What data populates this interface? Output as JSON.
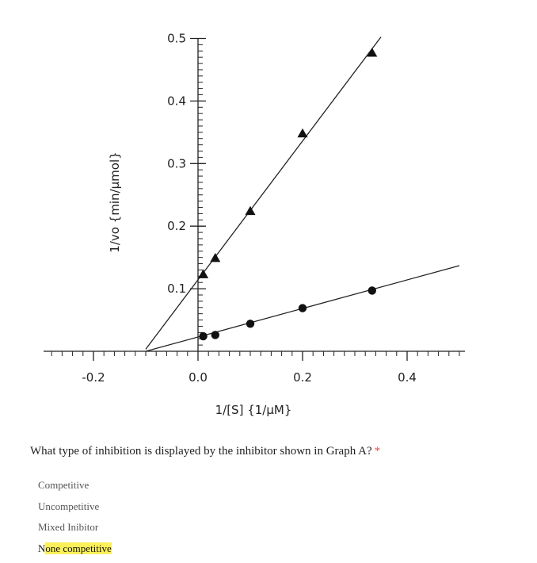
{
  "chart_data": {
    "type": "scatter",
    "xlabel": "1/[S] {1/µM}",
    "ylabel": "1/vo {min/µmol}",
    "xlim": [
      -0.3,
      0.5
    ],
    "ylim": [
      0,
      0.5
    ],
    "x_ticks": [
      -0.2,
      0.0,
      0.2,
      0.4
    ],
    "x_tick_labels": [
      "-0.2",
      "0.0",
      "0.2",
      "0.4"
    ],
    "y_ticks": [
      0.1,
      0.2,
      0.3,
      0.4,
      0.5
    ],
    "y_tick_labels": [
      "0.1",
      "0.2",
      "0.3",
      "0.4",
      "0.5"
    ],
    "grid": false,
    "series": [
      {
        "marker": "triangle",
        "x": [
          0.01,
          0.033,
          0.1,
          0.2,
          0.333
        ],
        "y": [
          0.123,
          0.149,
          0.224,
          0.348,
          0.477
        ],
        "fit_line": {
          "x_start": -0.1,
          "x_end": 0.35
        }
      },
      {
        "marker": "circle",
        "x": [
          0.01,
          0.033,
          0.1,
          0.2,
          0.333
        ],
        "y": [
          0.024,
          0.026,
          0.044,
          0.069,
          0.097
        ],
        "fit_line": {
          "x_start": -0.1,
          "x_end": 0.5
        }
      }
    ]
  },
  "question": {
    "text": "What type of inhibition is displayed by the inhibitor shown in Graph A?",
    "required_mark": "*"
  },
  "options": [
    {
      "label": "Competitive"
    },
    {
      "label": "Uncompetitive"
    },
    {
      "label": "Mixed Inibitor"
    },
    {
      "label_plain": "N",
      "label_highlight": "one competitive",
      "selected": true
    }
  ],
  "colors": {
    "highlight": "#fbf05a",
    "required": "#d9534f"
  }
}
